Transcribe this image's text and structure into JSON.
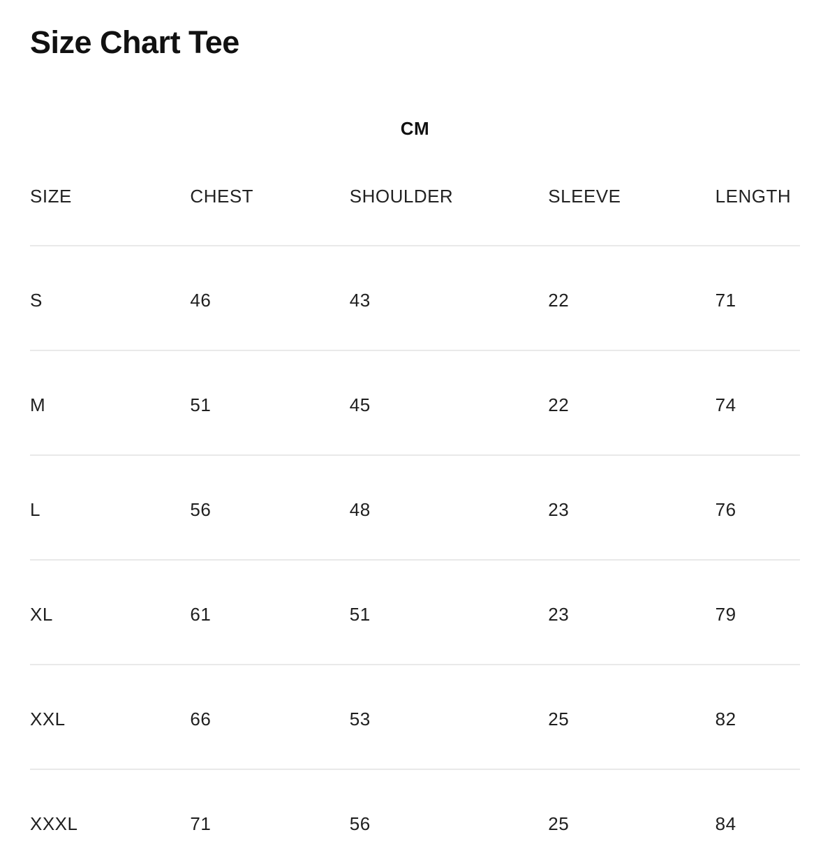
{
  "page": {
    "title": "Size Chart Tee",
    "unit_label": "CM"
  },
  "colors": {
    "background": "#ffffff",
    "text": "#1f1f1f",
    "title_text": "#111111",
    "divider": "#e9e9e9"
  },
  "chart_data": {
    "type": "table",
    "title": "Size Chart Tee",
    "unit": "CM",
    "columns": [
      "SIZE",
      "CHEST",
      "SHOULDER",
      "SLEEVE",
      "LENGTH"
    ],
    "rows": [
      {
        "size": "S",
        "chest": 46,
        "shoulder": 43,
        "sleeve": 22,
        "length": 71
      },
      {
        "size": "M",
        "chest": 51,
        "shoulder": 45,
        "sleeve": 22,
        "length": 74
      },
      {
        "size": "L",
        "chest": 56,
        "shoulder": 48,
        "sleeve": 23,
        "length": 76
      },
      {
        "size": "XL",
        "chest": 61,
        "shoulder": 51,
        "sleeve": 23,
        "length": 79
      },
      {
        "size": "XXL",
        "chest": 66,
        "shoulder": 53,
        "sleeve": 25,
        "length": 82
      },
      {
        "size": "XXXL",
        "chest": 71,
        "shoulder": 56,
        "sleeve": 25,
        "length": 84
      }
    ]
  }
}
